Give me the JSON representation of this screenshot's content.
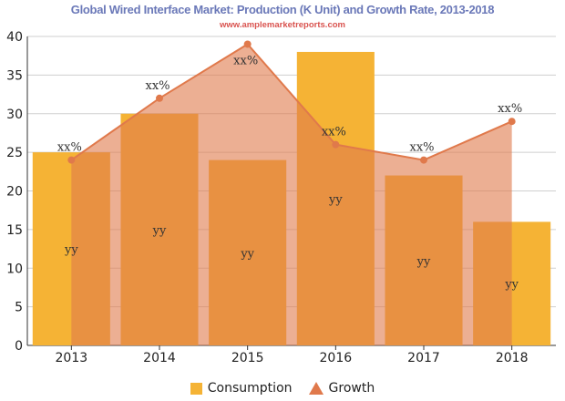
{
  "chart_data": {
    "type": "bar",
    "title": "Global Wired Interface Market: Production (K Unit) and Growth Rate, 2013-2018",
    "subtitle": "www.amplemarketreports.com",
    "categories": [
      "2013",
      "2014",
      "2015",
      "2016",
      "2017",
      "2018"
    ],
    "series": [
      {
        "name": "Consumption",
        "type": "bar",
        "color": "#f5b335",
        "values": [
          25,
          30,
          24,
          38,
          22,
          16
        ],
        "labels": [
          "yy",
          "yy",
          "yy",
          "yy",
          "yy",
          "yy"
        ]
      },
      {
        "name": "Growth",
        "type": "area-line",
        "color": "#e0794b",
        "values": [
          24,
          32,
          39,
          26,
          24,
          29
        ],
        "labels": [
          "xx%",
          "xx%",
          "xx%",
          "xx%",
          "xx%",
          "xx%"
        ]
      }
    ],
    "yticks": [
      "0",
      "5",
      "10",
      "15",
      "20",
      "25",
      "30",
      "35",
      "40"
    ],
    "ylim": [
      0,
      40
    ],
    "grid": true,
    "legend_position": "bottom"
  }
}
